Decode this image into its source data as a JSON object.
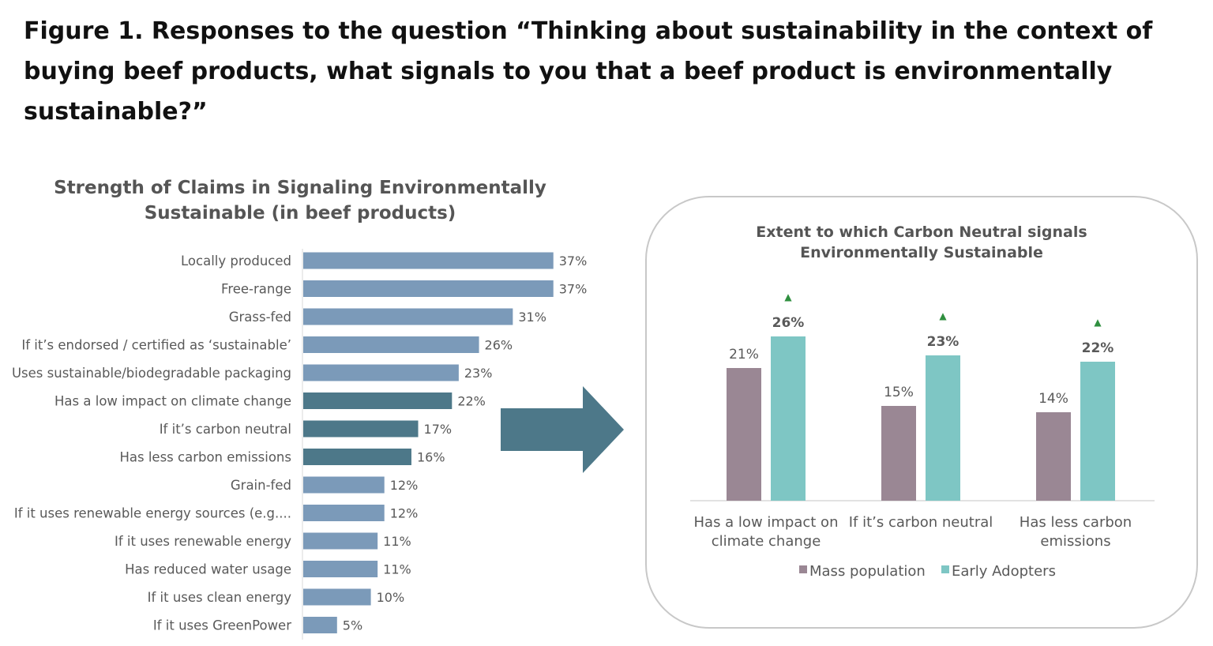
{
  "figure_title": "Figure 1. Responses to the question “Thinking about sustainability in the context of buying beef products, what signals to you that a beef product is environmentally sustainable?”",
  "colors": {
    "bar_default": "#7b9ab9",
    "bar_highlight": "#4d7889",
    "mass_population": "#9a8794",
    "early_adopters": "#7ec6c4",
    "arrow": "#4d7889",
    "up_marker": "#2f8f3f"
  },
  "chart_data": [
    {
      "type": "bar",
      "orientation": "horizontal",
      "title": "Strength of Claims in Signaling Environmentally Sustainable (in beef products)",
      "title_lines": [
        "Strength of Claims in Signaling Environmentally",
        "Sustainable (in beef products)"
      ],
      "categories": [
        "Locally produced",
        "Free-range",
        "Grass-fed",
        "If it’s endorsed / certified as ‘sustainable’",
        "Uses sustainable/biodegradable packaging",
        "Has a low impact on climate change",
        "If it’s carbon neutral",
        "Has less carbon emissions",
        "Grain-fed",
        "If it uses renewable energy sources (e.g....",
        "If it uses renewable energy",
        "Has reduced water usage",
        "If it uses clean energy",
        "If it uses GreenPower"
      ],
      "values": [
        37,
        37,
        31,
        26,
        23,
        22,
        17,
        16,
        12,
        12,
        11,
        11,
        10,
        5
      ],
      "value_labels": [
        "37%",
        "37%",
        "31%",
        "26%",
        "23%",
        "22%",
        "17%",
        "16%",
        "12%",
        "12%",
        "11%",
        "11%",
        "10%",
        "5%"
      ],
      "highlighted": [
        false,
        false,
        false,
        false,
        false,
        true,
        true,
        true,
        false,
        false,
        false,
        false,
        false,
        false
      ],
      "xlim": [
        0,
        40
      ],
      "grid": false
    },
    {
      "type": "bar",
      "title": "Extent to which Carbon Neutral signals Environmentally Sustainable",
      "title_lines": [
        "Extent to which Carbon Neutral signals",
        "Environmentally Sustainable"
      ],
      "categories": [
        "Has a low impact on climate change",
        "If it’s carbon neutral",
        "Has less carbon emissions"
      ],
      "category_lines": [
        [
          "Has a low impact on",
          "climate change"
        ],
        [
          "If it’s carbon neutral"
        ],
        [
          "Has less carbon",
          "emissions"
        ]
      ],
      "series": [
        {
          "name": "Mass population",
          "values": [
            21,
            15,
            14
          ],
          "labels": [
            "21%",
            "15%",
            "14%"
          ]
        },
        {
          "name": "Early Adopters",
          "values": [
            26,
            23,
            22
          ],
          "labels": [
            "26%",
            "23%",
            "22%"
          ]
        }
      ],
      "significance_marker": "▲",
      "ylim": [
        0,
        30
      ],
      "legend_position": "bottom",
      "grid": false
    }
  ]
}
